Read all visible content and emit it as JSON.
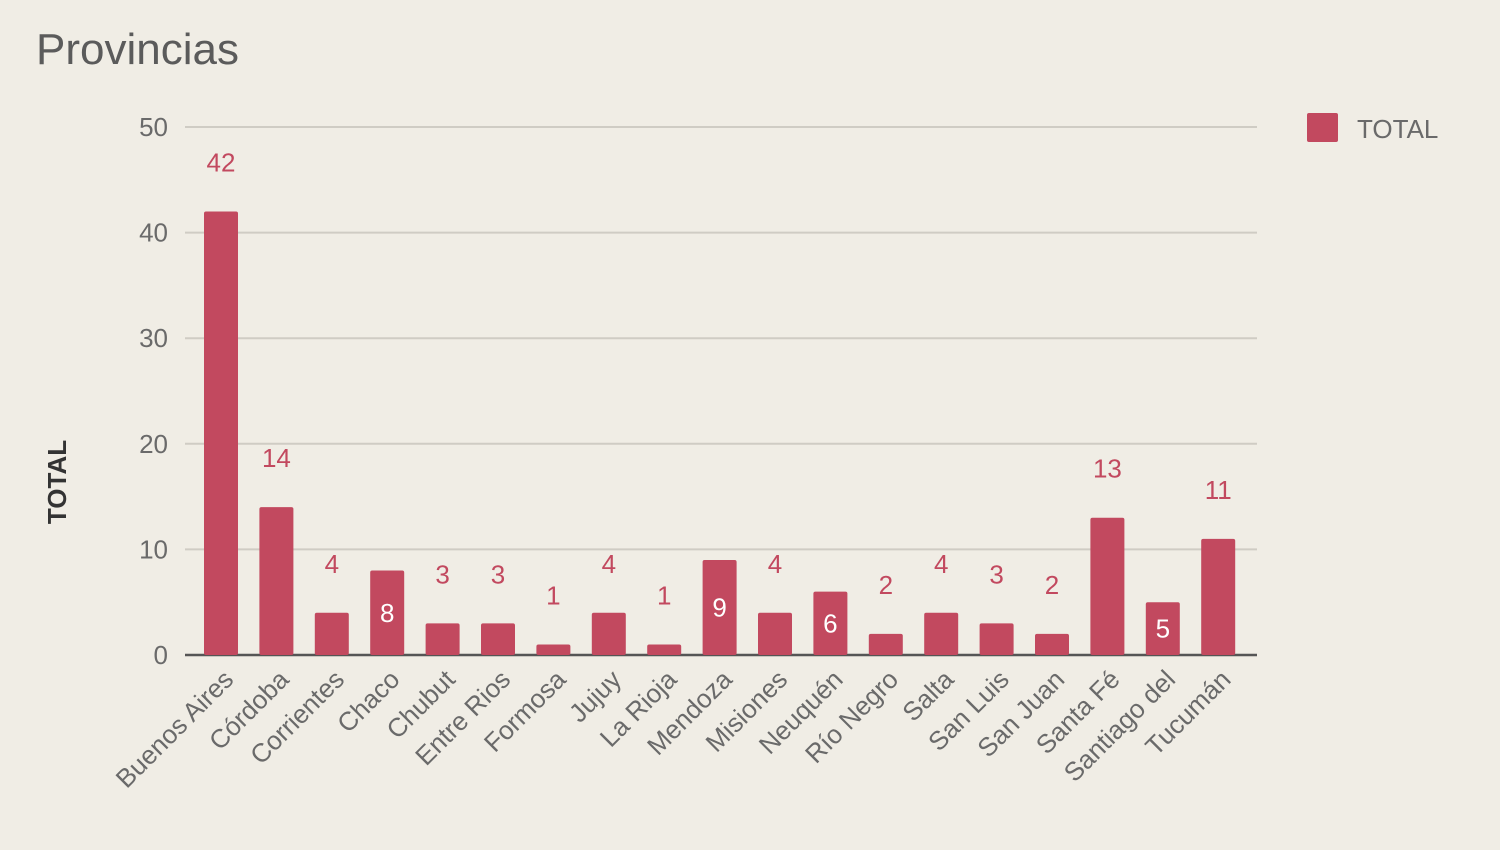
{
  "chart_data": {
    "type": "bar",
    "title": "Provincias",
    "xlabel": "",
    "ylabel": "TOTAL",
    "ylim": [
      0,
      50
    ],
    "yticks": [
      0,
      10,
      20,
      30,
      40,
      50
    ],
    "grid": true,
    "legend_position": "top-right",
    "categories": [
      "Buenos Aires",
      "Córdoba",
      "Corrientes",
      "Chaco",
      "Chubut",
      "Entre Rios",
      "Formosa",
      "Jujuy",
      "La Rioja",
      "Mendoza",
      "Misiones",
      "Neuquén",
      "Río Negro",
      "Salta",
      "San Luis",
      "San Juan",
      "Santa Fé",
      "Santiago del",
      "Tucumán"
    ],
    "series": [
      {
        "name": "TOTAL",
        "color": "#c2495f",
        "values": [
          42,
          14,
          4,
          8,
          3,
          3,
          1,
          4,
          1,
          9,
          4,
          6,
          2,
          4,
          3,
          2,
          13,
          5,
          11
        ]
      }
    ],
    "inside_label_color": "#ffffff",
    "gridline_color": "#cfccc4",
    "baseline_color": "#555555"
  }
}
